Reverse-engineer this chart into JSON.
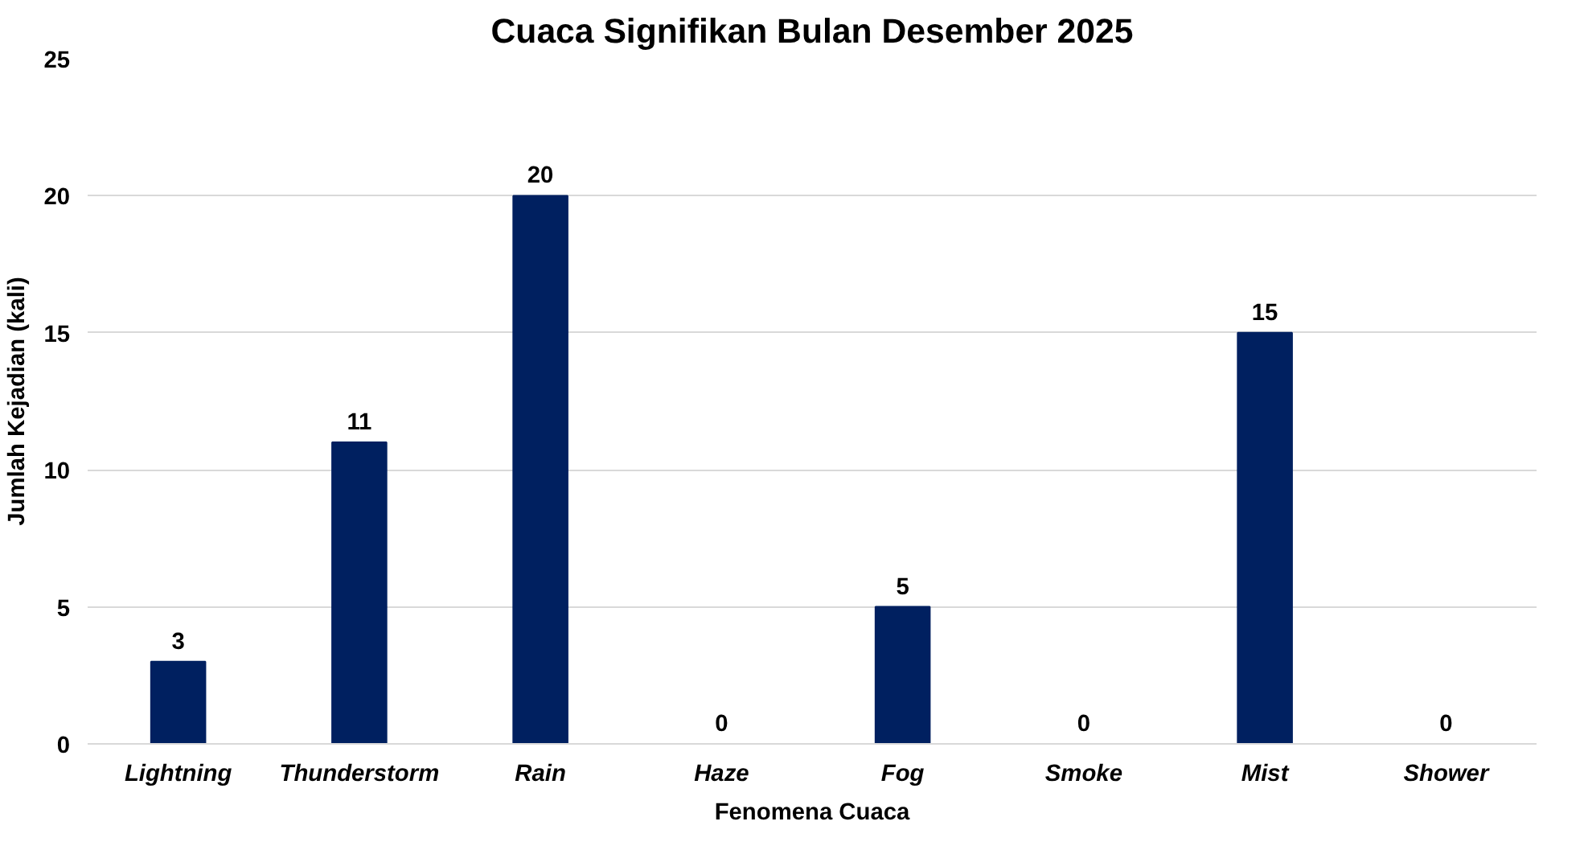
{
  "chart_data": {
    "type": "bar",
    "title": "Cuaca Signifikan Bulan Desember 2025",
    "xlabel": "Fenomena Cuaca",
    "ylabel": "Jumlah Kejadian (kali)",
    "categories": [
      "Lightning",
      "Thunderstorm",
      "Rain",
      "Haze",
      "Fog",
      "Smoke",
      "Mist",
      "Shower"
    ],
    "values": [
      3,
      11,
      20,
      0,
      5,
      0,
      15,
      0
    ],
    "color": "#002060",
    "ylim": [
      0,
      25
    ],
    "yticks": [
      0,
      5,
      10,
      15,
      20,
      25
    ],
    "grid": "y",
    "data_labels": true
  }
}
